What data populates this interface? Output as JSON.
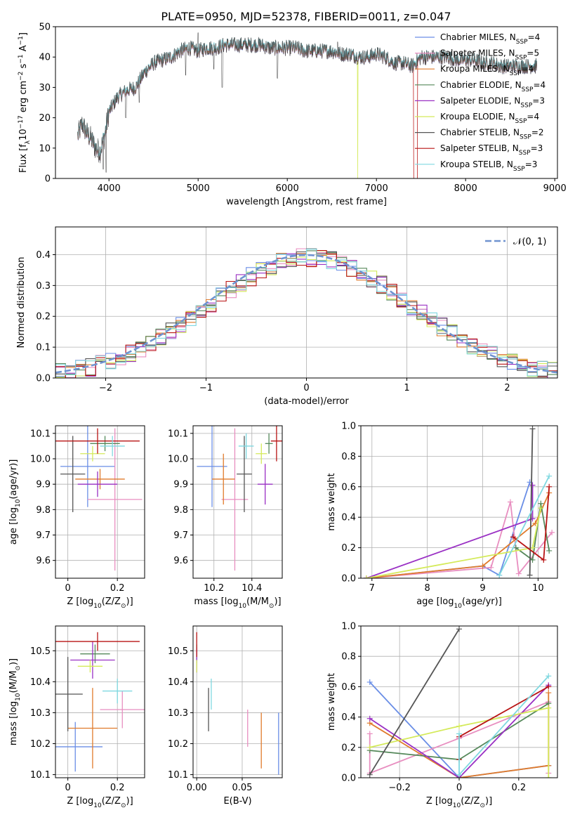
{
  "title": "PLATE=0950, MJD=52378, FIBERID=0011, z=0.047",
  "colors": {
    "Chabrier MILES": "#6a8ee6",
    "Salpeter MILES": "#e88ec0",
    "Kroupa MILES": "#e07b2c",
    "Chabrier ELODIE": "#55885a",
    "Salpeter ELODIE": "#9a30c4",
    "Kroupa ELODIE": "#d4ea5a",
    "Chabrier STELIB": "#555555",
    "Salpeter STELIB": "#b81414",
    "Kroupa STELIB": "#7fd8e0"
  },
  "chart_data": [
    {
      "id": "spectrum",
      "type": "line",
      "title": "PLATE=0950, MJD=52378, FIBERID=0011, z=0.047",
      "xlabel": "wavelength [Angstrom, rest frame]",
      "ylabel": "Flux [f",
      "ylabel_sub": "λ",
      "ylabel_rest": "10",
      "ylabel_exp1": "−17",
      "ylabel_mid": " erg cm",
      "ylabel_exp2": "−2",
      "ylabel_mid2": " s",
      "ylabel_exp3": "−1",
      "ylabel_end": " A",
      "ylabel_exp4": "−1",
      "ylabel_close": "]",
      "xlim": [
        3400,
        9030
      ],
      "ylim": [
        0,
        50
      ],
      "xticks": [
        4000,
        5000,
        6000,
        7000,
        8000,
        9000
      ],
      "yticks": [
        0,
        10,
        20,
        30,
        40,
        50
      ],
      "legend_position": "top-right",
      "legend": [
        {
          "name": "Chabrier MILES",
          "n": "4"
        },
        {
          "name": "Salpeter MILES",
          "n": "5"
        },
        {
          "name": "Kroupa MILES",
          "n": "4"
        },
        {
          "name": "Chabrier ELODIE",
          "n": "4"
        },
        {
          "name": "Salpeter ELODIE",
          "n": "3"
        },
        {
          "name": "Kroupa ELODIE",
          "n": "4"
        },
        {
          "name": "Chabrier STELIB",
          "n": "2"
        },
        {
          "name": "Salpeter STELIB",
          "n": "3"
        },
        {
          "name": "Kroupa STELIB",
          "n": "3"
        }
      ],
      "legend_prefix": "N",
      "legend_sub": "SSP",
      "continuum": [
        [
          3650,
          14
        ],
        [
          3700,
          18
        ],
        [
          3750,
          15
        ],
        [
          3800,
          13
        ],
        [
          3850,
          10
        ],
        [
          3900,
          9
        ],
        [
          3950,
          14
        ],
        [
          4000,
          22
        ],
        [
          4100,
          27
        ],
        [
          4200,
          29
        ],
        [
          4300,
          30
        ],
        [
          4400,
          35
        ],
        [
          4500,
          38
        ],
        [
          4600,
          39
        ],
        [
          4700,
          40
        ],
        [
          4800,
          42
        ],
        [
          4900,
          43
        ],
        [
          5000,
          42
        ],
        [
          5100,
          43
        ],
        [
          5200,
          43
        ],
        [
          5300,
          44
        ],
        [
          5400,
          44
        ],
        [
          5500,
          44
        ],
        [
          5600,
          44
        ],
        [
          5700,
          44
        ],
        [
          5800,
          43
        ],
        [
          5900,
          43
        ],
        [
          6000,
          43
        ],
        [
          6100,
          43
        ],
        [
          6200,
          42
        ],
        [
          6300,
          42
        ],
        [
          6400,
          42
        ],
        [
          6500,
          42
        ],
        [
          6600,
          41
        ],
        [
          6700,
          41
        ],
        [
          6800,
          40
        ],
        [
          6900,
          40
        ],
        [
          7000,
          41
        ],
        [
          7100,
          40
        ],
        [
          7200,
          38
        ],
        [
          7300,
          38
        ],
        [
          7400,
          37
        ],
        [
          7500,
          40
        ],
        [
          7600,
          40
        ],
        [
          7700,
          40
        ],
        [
          7800,
          40
        ],
        [
          7900,
          39
        ],
        [
          8000,
          39
        ],
        [
          8100,
          39
        ],
        [
          8200,
          38
        ],
        [
          8300,
          38
        ],
        [
          8400,
          37
        ],
        [
          8500,
          37
        ],
        [
          8600,
          37
        ],
        [
          8700,
          37
        ],
        [
          8800,
          37
        ]
      ],
      "spikes": [
        [
          3870,
          7
        ],
        [
          3935,
          3
        ],
        [
          3968,
          2
        ],
        [
          4190,
          20
        ],
        [
          4340,
          25
        ],
        [
          4860,
          34
        ],
        [
          5175,
          36
        ],
        [
          5270,
          30
        ],
        [
          5890,
          33
        ],
        [
          6563,
          45
        ],
        [
          6180,
          40
        ],
        [
          5000,
          48
        ]
      ],
      "drops": [
        {
          "series": "Kroupa ELODIE",
          "x": 6790,
          "to": 0
        },
        {
          "series": "Salpeter STELIB",
          "x": 7420,
          "to": 0
        }
      ]
    },
    {
      "id": "residuals",
      "type": "histogram",
      "xlabel": "(data-model)/error",
      "ylabel": "Normed distribution",
      "xlim": [
        -2.5,
        2.5
      ],
      "ylim": [
        0,
        0.49
      ],
      "xticks": [
        -2,
        -1,
        0,
        1,
        2
      ],
      "yticks": [
        0.0,
        0.1,
        0.2,
        0.3,
        0.4
      ],
      "grid": true,
      "legend_position": "top-right",
      "legend": [
        {
          "name": "N(0,1)",
          "style": "dashed"
        }
      ],
      "bin_width": 0.1,
      "gaussian": {
        "mu": 0,
        "sigma": 1
      }
    },
    {
      "id": "age-vs-Z",
      "type": "errorbar",
      "xlabel": "Z [log",
      "xlabel_sub": "10",
      "xlabel_rest": "(Z/Z",
      "xlabel_sub2": "⊙",
      "xlabel_close": ")]",
      "ylabel": "age  [log",
      "ylabel_sub": "10",
      "ylabel_rest": "(age/yr)]",
      "xlim": [
        -0.05,
        0.31
      ],
      "ylim": [
        9.53,
        10.13
      ],
      "xticks": [
        0.0,
        0.2
      ],
      "yticks": [
        9.6,
        9.7,
        9.8,
        9.9,
        10.0,
        10.1
      ],
      "grid": true,
      "points": [
        {
          "series": "Chabrier MILES",
          "x": 0.08,
          "xerr": 0.11,
          "y": 9.97,
          "yerr": 0.16
        },
        {
          "series": "Salpeter MILES",
          "x": 0.19,
          "xerr": 0.11,
          "y": 9.84,
          "yerr": 0.28
        },
        {
          "series": "Kroupa MILES",
          "x": 0.13,
          "xerr": 0.1,
          "y": 9.92,
          "yerr": 0.04
        },
        {
          "series": "Chabrier ELODIE",
          "x": 0.15,
          "xerr": 0.06,
          "y": 10.06,
          "yerr": 0.03
        },
        {
          "series": "Salpeter ELODIE",
          "x": 0.12,
          "xerr": 0.08,
          "y": 9.9,
          "yerr": 0.05
        },
        {
          "series": "Kroupa ELODIE",
          "x": 0.1,
          "xerr": 0.05,
          "y": 10.02,
          "yerr": 0.03
        },
        {
          "series": "Chabrier STELIB",
          "x": 0.02,
          "xerr": 0.05,
          "y": 9.94,
          "yerr": 0.15
        },
        {
          "series": "Salpeter STELIB",
          "x": 0.12,
          "xerr": 0.17,
          "y": 10.07,
          "yerr": 0.05
        },
        {
          "series": "Kroupa STELIB",
          "x": 0.18,
          "xerr": 0.05,
          "y": 10.05,
          "yerr": 0.04
        }
      ]
    },
    {
      "id": "age-vs-mass",
      "type": "errorbar",
      "xlabel": "mass [log",
      "xlabel_sub": "10",
      "xlabel_rest": "(M/M",
      "xlabel_sub2": "⊙",
      "xlabel_close": ")]",
      "ylabel": "",
      "xlim": [
        10.09,
        10.56
      ],
      "ylim": [
        9.53,
        10.13
      ],
      "xticks": [
        10.2,
        10.4
      ],
      "yticks": [
        9.6,
        9.7,
        9.8,
        9.9,
        10.0,
        10.1
      ],
      "grid": true,
      "points": [
        {
          "series": "Chabrier MILES",
          "x": 10.19,
          "xerr": 0.08,
          "y": 9.97,
          "yerr": 0.16
        },
        {
          "series": "Salpeter MILES",
          "x": 10.31,
          "xerr": 0.07,
          "y": 9.84,
          "yerr": 0.28
        },
        {
          "series": "Kroupa MILES",
          "x": 10.25,
          "xerr": 0.06,
          "y": 9.92,
          "yerr": 0.1
        },
        {
          "series": "Chabrier ELODIE",
          "x": 10.49,
          "xerr": 0.02,
          "y": 10.06,
          "yerr": 0.04
        },
        {
          "series": "Salpeter ELODIE",
          "x": 10.47,
          "xerr": 0.04,
          "y": 9.9,
          "yerr": 0.08
        },
        {
          "series": "Kroupa ELODIE",
          "x": 10.45,
          "xerr": 0.03,
          "y": 10.02,
          "yerr": 0.04
        },
        {
          "series": "Chabrier STELIB",
          "x": 10.36,
          "xerr": 0.04,
          "y": 9.94,
          "yerr": 0.15
        },
        {
          "series": "Salpeter STELIB",
          "x": 10.53,
          "xerr": 0.03,
          "y": 10.07,
          "yerr": 0.08
        },
        {
          "series": "Kroupa STELIB",
          "x": 10.37,
          "xerr": 0.04,
          "y": 10.05,
          "yerr": 0.05
        }
      ]
    },
    {
      "id": "mass-weight-vs-age",
      "type": "line",
      "xlabel": "age  [log",
      "xlabel_sub": "10",
      "xlabel_rest": "(age/yr)]",
      "ylabel": "mass weight",
      "xlim": [
        6.8,
        10.35
      ],
      "ylim": [
        0,
        1.0
      ],
      "xticks": [
        7,
        8,
        9,
        10
      ],
      "yticks": [
        0.0,
        0.2,
        0.4,
        0.6,
        0.8,
        1.0
      ],
      "grid": true,
      "series": [
        {
          "name": "Chabrier MILES",
          "x": [
            6.9,
            9.0,
            9.3,
            9.85
          ],
          "y": [
            0.0,
            0.08,
            0.02,
            0.63
          ]
        },
        {
          "name": "Salpeter MILES",
          "x": [
            6.9,
            9.15,
            9.5,
            9.65,
            10.25
          ],
          "y": [
            0.0,
            0.07,
            0.5,
            0.03,
            0.3
          ]
        },
        {
          "name": "Kroupa MILES",
          "x": [
            6.9,
            9.0,
            9.95,
            10.2
          ],
          "y": [
            0.0,
            0.08,
            0.36,
            0.56
          ]
        },
        {
          "name": "Chabrier ELODIE",
          "x": [
            9.6,
            9.9,
            10.05,
            10.2
          ],
          "y": [
            0.2,
            0.12,
            0.49,
            0.18
          ]
        },
        {
          "name": "Salpeter ELODIE",
          "x": [
            6.9,
            9.9,
            9.9
          ],
          "y": [
            0.0,
            0.39,
            0.61
          ]
        },
        {
          "name": "Kroupa ELODIE",
          "x": [
            6.9,
            9.9,
            10.05
          ],
          "y": [
            0.0,
            0.2,
            0.46
          ]
        },
        {
          "name": "Chabrier STELIB",
          "x": [
            9.85,
            9.9
          ],
          "y": [
            0.02,
            0.98
          ]
        },
        {
          "name": "Salpeter STELIB",
          "x": [
            9.55,
            10.1,
            10.2
          ],
          "y": [
            0.27,
            0.12,
            0.6
          ]
        },
        {
          "name": "Kroupa STELIB",
          "x": [
            9.3,
            10.2
          ],
          "y": [
            0.02,
            0.67
          ]
        }
      ]
    },
    {
      "id": "mass-vs-Z",
      "type": "errorbar",
      "xlabel": "Z [log",
      "xlabel_sub": "10",
      "xlabel_rest": "(Z/Z",
      "xlabel_sub2": "⊙",
      "xlabel_close": ")]",
      "ylabel": "mass [log",
      "ylabel_sub": "10",
      "ylabel_rest": "(M/M",
      "ylabel_sub2": "⊙",
      "ylabel_close": ")]",
      "xlim": [
        -0.05,
        0.31
      ],
      "ylim": [
        10.09,
        10.58
      ],
      "xticks": [
        0.0,
        0.2
      ],
      "yticks": [
        10.1,
        10.2,
        10.3,
        10.4,
        10.5
      ],
      "grid": true,
      "points": [
        {
          "series": "Chabrier MILES",
          "x": 0.03,
          "xerr": 0.11,
          "y": 10.19,
          "yerr": 0.08
        },
        {
          "series": "Salpeter MILES",
          "x": 0.22,
          "xerr": 0.09,
          "y": 10.31,
          "yerr": 0.06
        },
        {
          "series": "Kroupa MILES",
          "x": 0.1,
          "xerr": 0.1,
          "y": 10.25,
          "yerr": 0.13
        },
        {
          "series": "Chabrier ELODIE",
          "x": 0.11,
          "xerr": 0.06,
          "y": 10.49,
          "yerr": 0.03
        },
        {
          "series": "Salpeter ELODIE",
          "x": 0.1,
          "xerr": 0.09,
          "y": 10.47,
          "yerr": 0.06
        },
        {
          "series": "Kroupa ELODIE",
          "x": 0.09,
          "xerr": 0.05,
          "y": 10.45,
          "yerr": 0.02
        },
        {
          "series": "Chabrier STELIB",
          "x": 0.0,
          "xerr": 0.06,
          "y": 10.36,
          "yerr": 0.12
        },
        {
          "series": "Salpeter STELIB",
          "x": 0.12,
          "xerr": 0.17,
          "y": 10.53,
          "yerr": 0.03
        },
        {
          "series": "Kroupa STELIB",
          "x": 0.2,
          "xerr": 0.06,
          "y": 10.37,
          "yerr": 0.04
        }
      ]
    },
    {
      "id": "mass-vs-ebv",
      "type": "errorbar",
      "xlabel": "E(B-V)",
      "ylabel": "",
      "xlim": [
        -0.004,
        0.094
      ],
      "ylim": [
        10.09,
        10.58
      ],
      "xticks": [
        0.0,
        0.05
      ],
      "yticks": [
        10.1,
        10.2,
        10.3,
        10.4,
        10.5
      ],
      "grid": true,
      "points": [
        {
          "series": "Chabrier MILES",
          "x": 0.09,
          "y": 10.2,
          "yerr": 0.1
        },
        {
          "series": "Salpeter MILES",
          "x": 0.056,
          "y": 10.25,
          "yerr": 0.06
        },
        {
          "series": "Kroupa MILES",
          "x": 0.071,
          "y": 10.21,
          "yerr": 0.09
        },
        {
          "series": "Chabrier ELODIE",
          "x": 0.0,
          "y": 10.49,
          "yerr": 0.03
        },
        {
          "series": "Salpeter ELODIE",
          "x": 0.0,
          "y": 10.47,
          "yerr": 0.04
        },
        {
          "series": "Kroupa ELODIE",
          "x": 0.0,
          "y": 10.45,
          "yerr": 0.02
        },
        {
          "series": "Chabrier STELIB",
          "x": 0.013,
          "y": 10.31,
          "yerr": 0.07
        },
        {
          "series": "Salpeter STELIB",
          "x": 0.0,
          "y": 10.52,
          "yerr": 0.04
        },
        {
          "series": "Kroupa STELIB",
          "x": 0.016,
          "y": 10.36,
          "yerr": 0.05
        }
      ]
    },
    {
      "id": "mass-weight-vs-Z",
      "type": "line",
      "xlabel": "Z [log",
      "xlabel_sub": "10",
      "xlabel_rest": "(Z/Z",
      "xlabel_sub2": "⊙",
      "xlabel_close": ")]",
      "ylabel": "mass weight",
      "xlim": [
        -0.33,
        0.33
      ],
      "ylim": [
        0,
        1.0
      ],
      "xticks": [
        -0.2,
        0.0,
        0.2
      ],
      "yticks": [
        0.0,
        0.2,
        0.4,
        0.6,
        0.8,
        1.0
      ],
      "grid": true,
      "series": [
        {
          "name": "Chabrier MILES",
          "x": [
            -0.3,
            0.0,
            0.3
          ],
          "y": [
            0.63,
            0.0,
            0.08
          ]
        },
        {
          "name": "Salpeter MILES",
          "x": [
            -0.3,
            -0.3,
            0.0,
            0.3,
            0.3
          ],
          "y": [
            0.29,
            0.03,
            0.26,
            0.5,
            0.03
          ]
        },
        {
          "name": "Kroupa MILES",
          "x": [
            -0.3,
            0.0,
            0.3,
            0.3
          ],
          "y": [
            0.36,
            0.0,
            0.08,
            0.56
          ]
        },
        {
          "name": "Chabrier ELODIE",
          "x": [
            -0.3,
            0.0,
            0.3
          ],
          "y": [
            0.18,
            0.12,
            0.49
          ]
        },
        {
          "name": "Salpeter ELODIE",
          "x": [
            -0.3,
            0.0,
            0.3
          ],
          "y": [
            0.39,
            0.0,
            0.61
          ]
        },
        {
          "name": "Kroupa ELODIE",
          "x": [
            -0.3,
            0.0,
            0.3,
            0.3
          ],
          "y": [
            0.2,
            0.34,
            0.46,
            0.0
          ]
        },
        {
          "name": "Chabrier STELIB",
          "x": [
            -0.3,
            0.0
          ],
          "y": [
            0.02,
            0.98
          ]
        },
        {
          "name": "Salpeter STELIB",
          "x": [
            0.0,
            0.0,
            0.3
          ],
          "y": [
            0.12,
            0.27,
            0.6
          ]
        },
        {
          "name": "Kroupa STELIB",
          "x": [
            0.0,
            0.0,
            0.3
          ],
          "y": [
            0.29,
            0.02,
            0.67
          ]
        }
      ]
    }
  ]
}
